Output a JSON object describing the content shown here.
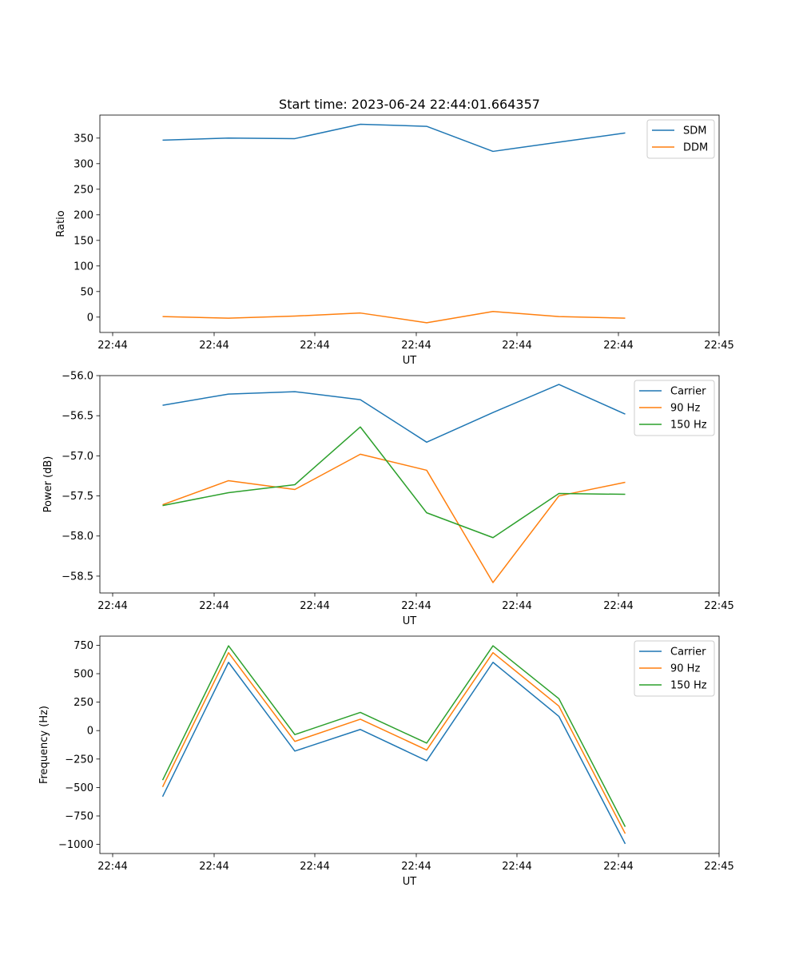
{
  "figure_title": "Start time: 2023-06-24 22:44:01.664357",
  "chart_data": [
    {
      "type": "line",
      "title": "Start time: 2023-06-24 22:44:01.664357",
      "xlabel": "UT",
      "ylabel": "Ratio",
      "x_tick_labels": [
        "22:44",
        "22:44",
        "22:44",
        "22:44",
        "22:44",
        "22:44",
        "22:45"
      ],
      "y_ticks": [
        0,
        50,
        100,
        150,
        200,
        250,
        300,
        350
      ],
      "y_tick_labels": [
        "0",
        "50",
        "100",
        "150",
        "200",
        "250",
        "300",
        "350"
      ],
      "ylim": [
        -30,
        395
      ],
      "legend_position": "top-right",
      "grid": false,
      "series": [
        {
          "name": "SDM",
          "color": "#1f77b4",
          "values": [
            346,
            350,
            349,
            377,
            373,
            324,
            342,
            360
          ]
        },
        {
          "name": "DDM",
          "color": "#ff7f0e",
          "values": [
            1,
            -2,
            2,
            8,
            -11,
            11,
            1,
            -2
          ]
        }
      ]
    },
    {
      "type": "line",
      "xlabel": "UT",
      "ylabel": "Power (dB)",
      "x_tick_labels": [
        "22:44",
        "22:44",
        "22:44",
        "22:44",
        "22:44",
        "22:44",
        "22:45"
      ],
      "y_ticks": [
        -56.0,
        -56.5,
        -57.0,
        -57.5,
        -58.0,
        -58.5
      ],
      "y_tick_labels": [
        "−56.0",
        "−56.5",
        "−57.0",
        "−57.5",
        "−58.0",
        "−58.5"
      ],
      "ylim": [
        -58.71,
        -56.0
      ],
      "legend_position": "top-right",
      "grid": false,
      "series": [
        {
          "name": "Carrier",
          "color": "#1f77b4",
          "values": [
            -56.37,
            -56.23,
            -56.2,
            -56.3,
            -56.83,
            -56.46,
            -56.11,
            -56.48
          ]
        },
        {
          "name": "90 Hz",
          "color": "#ff7f0e",
          "values": [
            -57.61,
            -57.31,
            -57.42,
            -56.98,
            -57.18,
            -58.58,
            -57.5,
            -57.33
          ]
        },
        {
          "name": "150 Hz",
          "color": "#2ca02c",
          "values": [
            -57.62,
            -57.46,
            -57.36,
            -56.64,
            -57.71,
            -58.02,
            -57.47,
            -57.48
          ]
        }
      ]
    },
    {
      "type": "line",
      "xlabel": "UT",
      "ylabel": "Frequency (Hz)",
      "x_tick_labels": [
        "22:44",
        "22:44",
        "22:44",
        "22:44",
        "22:44",
        "22:44",
        "22:45"
      ],
      "y_ticks": [
        750,
        500,
        250,
        0,
        -250,
        -500,
        -750,
        -1000
      ],
      "y_tick_labels": [
        "750",
        "500",
        "250",
        "0",
        "−250",
        "−500",
        "−750",
        "−1000"
      ],
      "ylim": [
        -1080,
        830
      ],
      "legend_position": "top-right",
      "grid": false,
      "series": [
        {
          "name": "Carrier",
          "color": "#1f77b4",
          "values": [
            -580,
            600,
            -180,
            10,
            -265,
            600,
            125,
            -995
          ]
        },
        {
          "name": "90 Hz",
          "color": "#ff7f0e",
          "values": [
            -495,
            685,
            -95,
            100,
            -170,
            685,
            215,
            -905
          ]
        },
        {
          "name": "150 Hz",
          "color": "#2ca02c",
          "values": [
            -435,
            745,
            -35,
            160,
            -110,
            745,
            280,
            -845
          ]
        }
      ]
    }
  ]
}
